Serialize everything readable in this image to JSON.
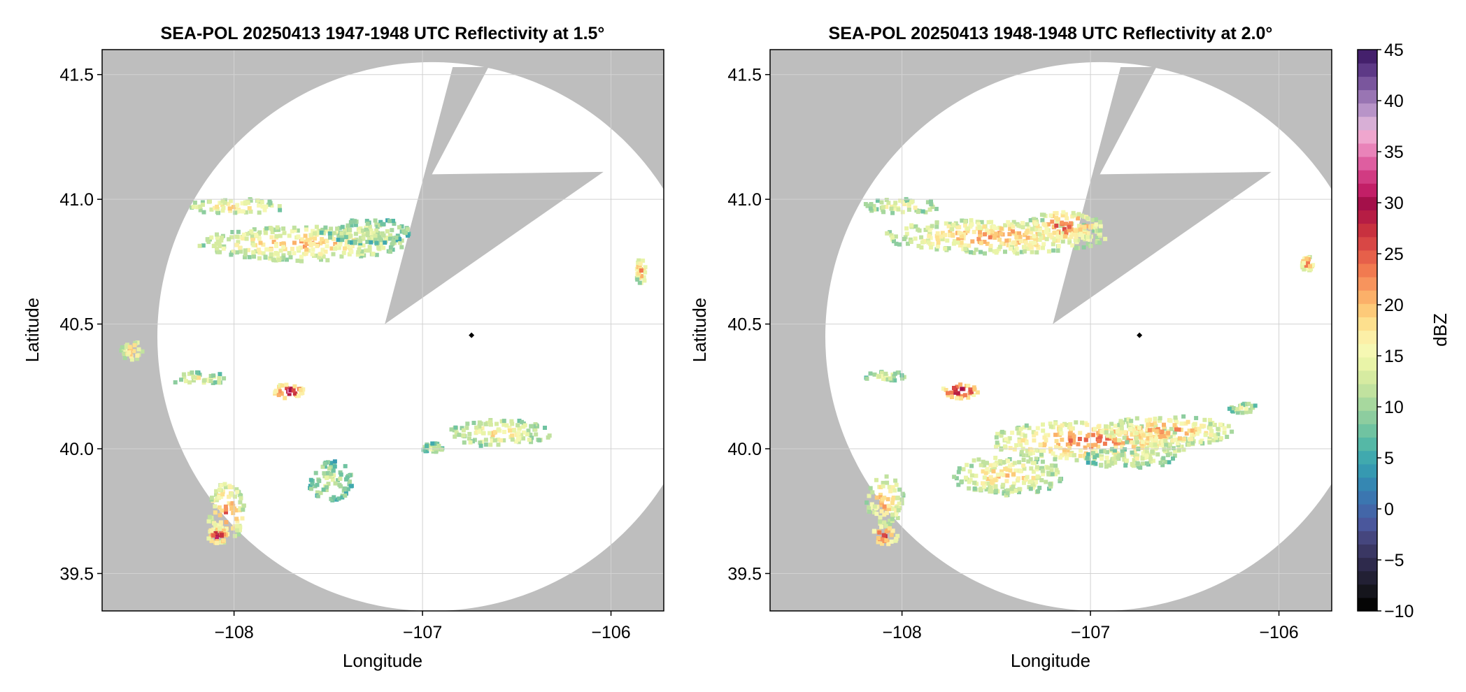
{
  "chart_data": {
    "type": "heatmap",
    "panels": [
      {
        "title": "SEA-POL 20250413 1947-1948 UTC Reflectivity at 1.5°",
        "xlabel": "Longitude",
        "ylabel": "Latitude",
        "xlim": [
          -108.7,
          -105.72
        ],
        "ylim": [
          39.35,
          41.6
        ],
        "xticks": [
          -108,
          -107,
          -106
        ],
        "xtick_labels": [
          "−108",
          "−107",
          "−106"
        ],
        "yticks": [
          39.5,
          40.0,
          40.5,
          41.0,
          41.5
        ],
        "ytick_labels": [
          "39.5",
          "40.0",
          "40.5",
          "41.0",
          "41.5"
        ],
        "grid": true,
        "radar_site": {
          "lon": -106.74,
          "lat": 40.455
        },
        "data_coverage_circle": {
          "center_lon": -106.95,
          "center_lat": 40.45,
          "radius_lat_deg": 1.1
        },
        "blocked_sector_polygon": [
          [
            -107.2,
            40.5
          ],
          [
            -106.84,
            41.53
          ],
          [
            -106.65,
            41.53
          ],
          [
            -106.95,
            41.1
          ],
          [
            -106.04,
            41.11
          ]
        ],
        "echoes": [
          {
            "lon": -108.0,
            "lat": 40.98,
            "dlon": 0.28,
            "dlat": 0.03,
            "dbz": 18
          },
          {
            "lon": -107.65,
            "lat": 40.83,
            "dlon": 0.55,
            "dlat": 0.07,
            "dbz": 19
          },
          {
            "lon": -107.3,
            "lat": 40.88,
            "dlon": 0.25,
            "dlat": 0.05,
            "dbz": 12
          },
          {
            "lon": -108.55,
            "lat": 40.4,
            "dlon": 0.06,
            "dlat": 0.04,
            "dbz": 20
          },
          {
            "lon": -108.2,
            "lat": 40.29,
            "dlon": 0.17,
            "dlat": 0.025,
            "dbz": 15
          },
          {
            "lon": -107.72,
            "lat": 40.24,
            "dlon": 0.08,
            "dlat": 0.03,
            "dbz": 31
          },
          {
            "lon": -106.6,
            "lat": 40.07,
            "dlon": 0.27,
            "dlat": 0.055,
            "dbz": 17
          },
          {
            "lon": -106.95,
            "lat": 40.01,
            "dlon": 0.06,
            "dlat": 0.02,
            "dbz": 12
          },
          {
            "lon": -107.5,
            "lat": 39.88,
            "dlon": 0.12,
            "dlat": 0.08,
            "dbz": 11
          },
          {
            "lon": -108.05,
            "lat": 39.75,
            "dlon": 0.1,
            "dlat": 0.12,
            "dbz": 22
          },
          {
            "lon": -108.1,
            "lat": 39.66,
            "dlon": 0.05,
            "dlat": 0.03,
            "dbz": 32
          },
          {
            "lon": -105.85,
            "lat": 40.72,
            "dlon": 0.03,
            "dlat": 0.05,
            "dbz": 22
          }
        ]
      },
      {
        "title": "SEA-POL 20250413 1948-1948 UTC Reflectivity at 2.0°",
        "xlabel": "Longitude",
        "ylabel": "Latitude",
        "xlim": [
          -108.7,
          -105.72
        ],
        "ylim": [
          39.35,
          41.6
        ],
        "xticks": [
          -108,
          -107,
          -106
        ],
        "xtick_labels": [
          "−108",
          "−107",
          "−106"
        ],
        "yticks": [
          39.5,
          40.0,
          40.5,
          41.0,
          41.5
        ],
        "ytick_labels": [
          "39.5",
          "40.0",
          "40.5",
          "41.0",
          "41.5"
        ],
        "grid": true,
        "radar_site": {
          "lon": -106.74,
          "lat": 40.455
        },
        "data_coverage_circle": {
          "center_lon": -106.95,
          "center_lat": 40.45,
          "radius_lat_deg": 1.1
        },
        "blocked_sector_polygon": [
          [
            -107.2,
            40.5
          ],
          [
            -106.84,
            41.53
          ],
          [
            -106.65,
            41.53
          ],
          [
            -106.95,
            41.1
          ],
          [
            -106.04,
            41.11
          ]
        ],
        "echoes": [
          {
            "lon": -108.0,
            "lat": 40.98,
            "dlon": 0.22,
            "dlat": 0.03,
            "dbz": 16
          },
          {
            "lon": -107.5,
            "lat": 40.86,
            "dlon": 0.6,
            "dlat": 0.07,
            "dbz": 20
          },
          {
            "lon": -107.15,
            "lat": 40.9,
            "dlon": 0.2,
            "dlat": 0.06,
            "dbz": 24
          },
          {
            "lon": -108.1,
            "lat": 40.3,
            "dlon": 0.12,
            "dlat": 0.02,
            "dbz": 14
          },
          {
            "lon": -107.7,
            "lat": 40.24,
            "dlon": 0.1,
            "dlat": 0.03,
            "dbz": 32
          },
          {
            "lon": -107.0,
            "lat": 40.04,
            "dlon": 0.55,
            "dlat": 0.08,
            "dbz": 22
          },
          {
            "lon": -106.6,
            "lat": 40.08,
            "dlon": 0.35,
            "dlat": 0.06,
            "dbz": 21
          },
          {
            "lon": -107.45,
            "lat": 39.9,
            "dlon": 0.3,
            "dlat": 0.08,
            "dbz": 18
          },
          {
            "lon": -106.8,
            "lat": 39.97,
            "dlon": 0.25,
            "dlat": 0.04,
            "dbz": 14
          },
          {
            "lon": -106.2,
            "lat": 40.17,
            "dlon": 0.08,
            "dlat": 0.02,
            "dbz": 14
          },
          {
            "lon": -108.1,
            "lat": 39.8,
            "dlon": 0.1,
            "dlat": 0.1,
            "dbz": 20
          },
          {
            "lon": -108.1,
            "lat": 39.66,
            "dlon": 0.07,
            "dlat": 0.04,
            "dbz": 26
          },
          {
            "lon": -105.86,
            "lat": 40.75,
            "dlon": 0.03,
            "dlat": 0.03,
            "dbz": 26
          }
        ]
      }
    ],
    "colorbar": {
      "label": "dBZ",
      "range": [
        -10,
        45
      ],
      "ticks": [
        -10,
        -5,
        0,
        5,
        10,
        15,
        20,
        25,
        30,
        35,
        40,
        45
      ],
      "tick_labels": [
        "−10",
        "−5",
        "0",
        "5",
        "10",
        "15",
        "20",
        "25",
        "30",
        "35",
        "40",
        "45"
      ],
      "colors": [
        "#050505",
        "#15151c",
        "#222034",
        "#2e2a4c",
        "#3a3763",
        "#45467e",
        "#4a579c",
        "#4366a8",
        "#3b76b0",
        "#3587b2",
        "#3699b1",
        "#40a9ae",
        "#55b8a6",
        "#70c3a1",
        "#8dcd9f",
        "#a7d89e",
        "#c1e29f",
        "#d6eba1",
        "#e9f4a8",
        "#f6f8b3",
        "#fcefa7",
        "#fde08e",
        "#fdca79",
        "#fbb069",
        "#f7945d",
        "#f17a50",
        "#e6604a",
        "#d84745",
        "#c8313f",
        "#b61d44",
        "#a4104a",
        "#c21f67",
        "#d13b82",
        "#de5ea0",
        "#e983b9",
        "#efa6ce",
        "#d8afd6",
        "#b894c8",
        "#9975b3",
        "#7a569d",
        "#5d3986",
        "#44206c"
      ]
    }
  },
  "colors": {
    "blocked_area": "#bebebe",
    "coverage": "#ffffff",
    "gridline": "#d2d2d2",
    "radar_site": "#000000"
  }
}
